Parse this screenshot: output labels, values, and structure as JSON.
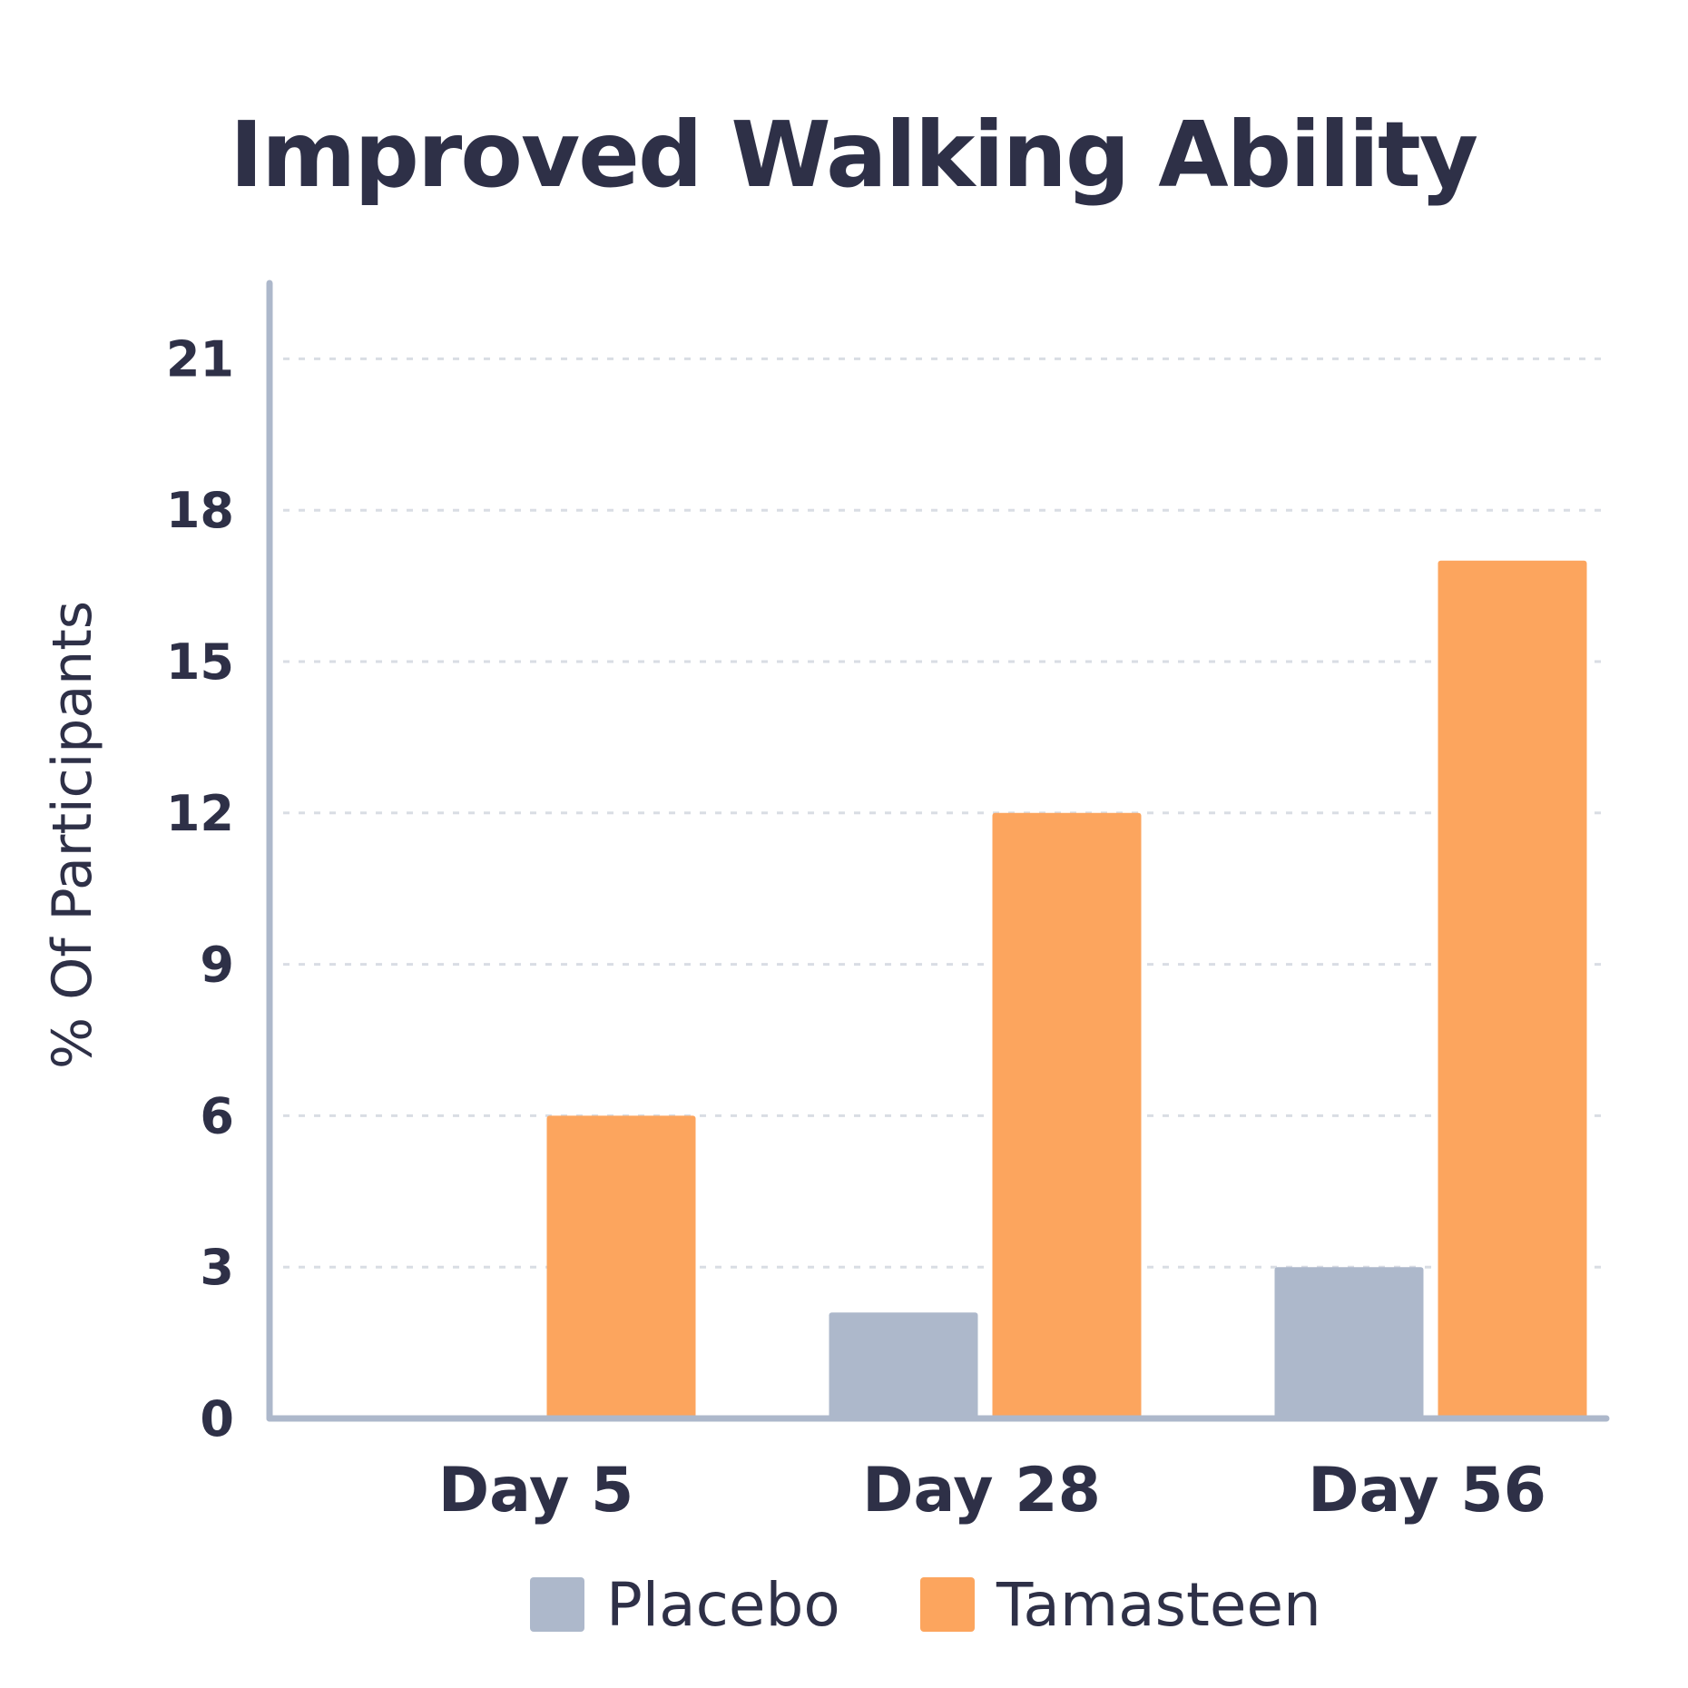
{
  "chart_data": {
    "type": "bar",
    "title": "Improved Walking Ability",
    "xlabel": "",
    "ylabel": "% Of Participants",
    "categories": [
      "Day 5",
      "Day 28",
      "Day 56"
    ],
    "series": [
      {
        "name": "Placebo",
        "color": "#adb8cb",
        "values": [
          0,
          2.1,
          3
        ]
      },
      {
        "name": "Tamasteen",
        "color": "#fca55e",
        "values": [
          6,
          12,
          17
        ]
      }
    ],
    "ylim": [
      0,
      22.5
    ],
    "yticks": [
      0,
      3,
      6,
      9,
      12,
      15,
      18,
      21
    ],
    "grid": true,
    "legend_position": "bottom"
  }
}
